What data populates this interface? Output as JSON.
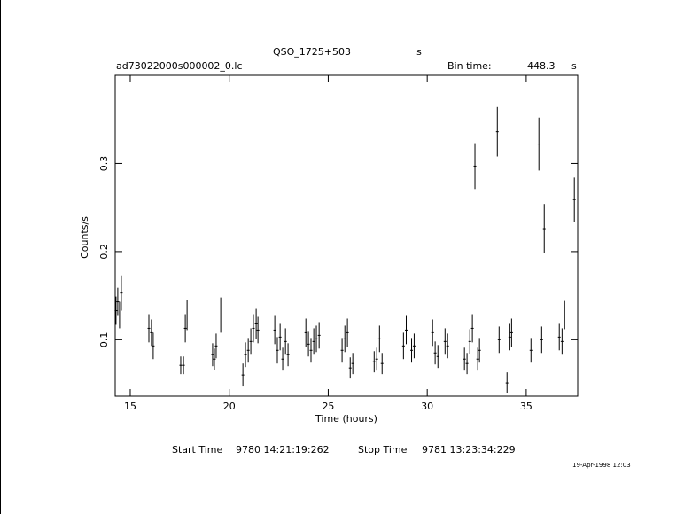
{
  "chart_data": {
    "type": "errorbar",
    "title": "QSO_1725+503",
    "title_suffix": "s",
    "file": "ad73022000s000002_0.lc",
    "bin_time_label": "Bin time:",
    "bin_time": 448.3,
    "bin_time_unit": "s",
    "x_label": "Time (hours)",
    "y_label": "Counts/s",
    "xlim": [
      14.24,
      37.6
    ],
    "xticks": [
      15,
      20,
      25,
      30,
      35
    ],
    "ylim": [
      0.036,
      0.4
    ],
    "yticks": [
      0.1,
      0.2,
      0.3
    ],
    "x": [
      14.28,
      14.37,
      14.46,
      14.55,
      15.94,
      16.07,
      16.16,
      17.55,
      17.69,
      17.78,
      17.87,
      19.16,
      19.25,
      19.34,
      19.57,
      20.69,
      20.82,
      20.96,
      21.09,
      21.22,
      21.36,
      21.45,
      22.3,
      22.43,
      22.57,
      22.7,
      22.84,
      22.97,
      23.87,
      24.0,
      24.13,
      24.27,
      24.4,
      24.54,
      25.7,
      25.84,
      25.97,
      26.11,
      26.24,
      27.32,
      27.45,
      27.59,
      27.72,
      28.8,
      28.94,
      29.21,
      29.34,
      30.27,
      30.4,
      30.54,
      30.9,
      31.03,
      31.88,
      32.01,
      32.15,
      32.28,
      32.41,
      32.55,
      32.64,
      33.54,
      33.63,
      34.03,
      34.17,
      34.26,
      35.24,
      35.64,
      35.78,
      35.91,
      36.67,
      36.81,
      36.94,
      37.43
    ],
    "values": [
      0.133,
      0.143,
      0.128,
      0.153,
      0.113,
      0.108,
      0.093,
      0.071,
      0.071,
      0.113,
      0.128,
      0.083,
      0.078,
      0.093,
      0.128,
      0.06,
      0.083,
      0.088,
      0.098,
      0.113,
      0.118,
      0.111,
      0.111,
      0.088,
      0.103,
      0.078,
      0.098,
      0.083,
      0.108,
      0.095,
      0.088,
      0.098,
      0.101,
      0.105,
      0.088,
      0.101,
      0.108,
      0.068,
      0.073,
      0.075,
      0.078,
      0.101,
      0.073,
      0.093,
      0.111,
      0.088,
      0.093,
      0.108,
      0.085,
      0.081,
      0.098,
      0.093,
      0.078,
      0.073,
      0.098,
      0.113,
      0.297,
      0.078,
      0.088,
      0.336,
      0.1,
      0.051,
      0.103,
      0.108,
      0.088,
      0.322,
      0.1,
      0.226,
      0.103,
      0.098,
      0.128,
      0.259
    ],
    "errors": [
      0.016,
      0.016,
      0.015,
      0.02,
      0.016,
      0.015,
      0.015,
      0.01,
      0.01,
      0.016,
      0.017,
      0.013,
      0.012,
      0.014,
      0.02,
      0.013,
      0.014,
      0.014,
      0.015,
      0.016,
      0.017,
      0.015,
      0.016,
      0.015,
      0.015,
      0.013,
      0.015,
      0.013,
      0.016,
      0.014,
      0.014,
      0.015,
      0.015,
      0.015,
      0.014,
      0.015,
      0.016,
      0.012,
      0.012,
      0.012,
      0.013,
      0.015,
      0.012,
      0.015,
      0.016,
      0.014,
      0.014,
      0.015,
      0.013,
      0.013,
      0.015,
      0.014,
      0.013,
      0.012,
      0.014,
      0.016,
      0.026,
      0.013,
      0.014,
      0.028,
      0.015,
      0.012,
      0.015,
      0.016,
      0.014,
      0.03,
      0.015,
      0.028,
      0.015,
      0.015,
      0.016,
      0.025
    ],
    "color": "#000000",
    "start_time_label": "Start Time",
    "start_time": "9780 14:21:19:262",
    "stop_time_label": "Stop Time",
    "stop_time": "9781 13:23:34:229",
    "date": "19-Apr-1998 12:03"
  }
}
